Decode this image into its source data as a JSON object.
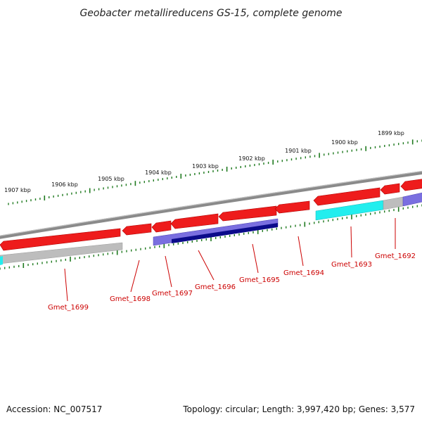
{
  "title": "Geobacter metallireducens GS-15, complete genome",
  "footer": {
    "accession": "Accession: NC_007517",
    "topology": "Topology: circular; Length: 3,997,420 bp; Genes: 3,577"
  },
  "colors": {
    "backbone": "#8a8a8a",
    "forward_gene": "#ee1c1c",
    "reverse_cds_light": "#7a6fe0",
    "reverse_cds_dark": "#0b0b8a",
    "reverse_cyan": "#22eeee",
    "reverse_gray": "#bdbdbd",
    "ticks": "#1f7a1f",
    "labels": "#cc0000"
  },
  "scale_labels": [
    "1899 kbp",
    "1900 kbp",
    "1901 kbp",
    "1902 kbp",
    "1903 kbp",
    "1904 kbp",
    "1905 kbp",
    "1906 kbp",
    "1907 kbp"
  ],
  "gene_labels": [
    "Gmet_1692",
    "Gmet_1693",
    "Gmet_1694",
    "Gmet_1695",
    "Gmet_1696",
    "Gmet_1697",
    "Gmet_1698",
    "Gmet_1699"
  ]
}
